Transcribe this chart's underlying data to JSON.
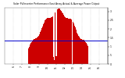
{
  "title": "Solar PV/Inverter Performance East Array Actual & Average Power Output",
  "bar_color": "#cc0000",
  "avg_line_color": "#0000cc",
  "bg_color": "#ffffff",
  "grid_color": "#aaaaaa",
  "text_color": "#000000",
  "ylim": [
    0,
    3.2
  ],
  "avg_value": 1.35,
  "n_bars": 288,
  "ytick_values_right": [
    0.0,
    0.5,
    1.0,
    1.5,
    2.0,
    2.5,
    3.0
  ],
  "ytick_labels_right": [
    "0",
    ".5",
    "1",
    "1.5",
    "2",
    "2.5",
    "3"
  ],
  "xtick_positions": [
    24,
    48,
    72,
    96,
    120,
    144,
    168,
    192,
    216,
    240,
    264
  ],
  "xtick_labels": [
    "6",
    "7",
    "8",
    "9",
    "10",
    "11",
    "12",
    "13",
    "14",
    "15",
    "16"
  ]
}
